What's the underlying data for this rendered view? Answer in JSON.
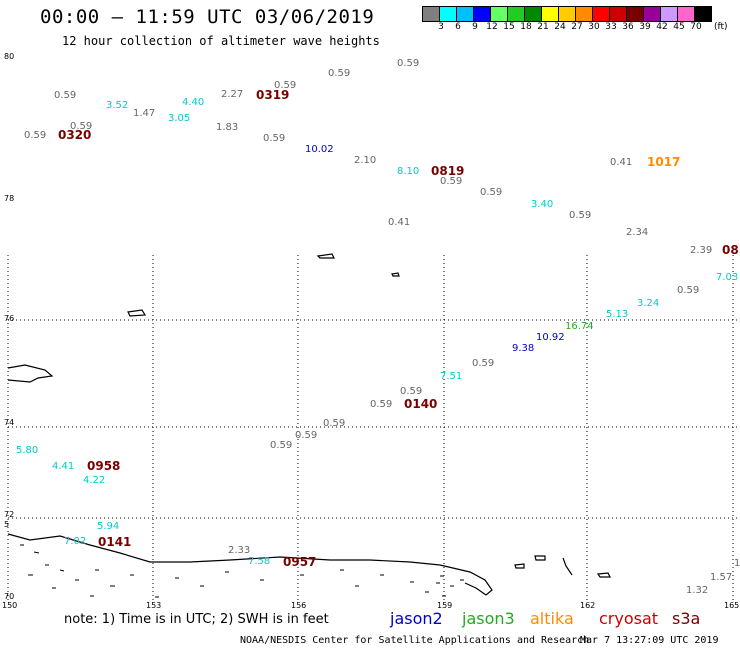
{
  "header": {
    "title": "00:00 – 11:59 UTC 03/06/2019",
    "subtitle": "12 hour collection of altimeter wave heights"
  },
  "legend": {
    "labels": [
      "3",
      "6",
      "9",
      "12",
      "15",
      "18",
      "21",
      "24",
      "27",
      "30",
      "33",
      "36",
      "39",
      "42",
      "45",
      "70"
    ],
    "unit": "(ft)",
    "colors": [
      "#7f7f7f",
      "#00ffff",
      "#00bfff",
      "#0000ff",
      "#66ff66",
      "#22cc22",
      "#008800",
      "#ffff00",
      "#ffcc00",
      "#ff8c00",
      "#ff0000",
      "#cc0000",
      "#7a0000",
      "#990099",
      "#cc99ff",
      "#ff66cc",
      "#000000"
    ]
  },
  "axes": {
    "lat_labels": [
      "80",
      "78",
      "76",
      "74",
      "72",
      "70"
    ],
    "lon_labels": [
      "150",
      "153",
      "156",
      "159",
      "162",
      "165"
    ],
    "left_edge_mark": "5"
  },
  "observations": [
    {
      "v": "0.59",
      "c": "#666666"
    },
    {
      "v": "0.59",
      "c": "#666666"
    },
    {
      "v": "0.59",
      "c": "#666666"
    },
    {
      "v": "3.52",
      "c": "#00cccc"
    },
    {
      "v": "1.47",
      "c": "#666666"
    },
    {
      "v": "4.40",
      "c": "#00cccc"
    },
    {
      "v": "3.05",
      "c": "#00cccc"
    },
    {
      "v": "2.27",
      "c": "#666666"
    },
    {
      "v": "0.59",
      "c": "#666666"
    },
    {
      "v": "0.59",
      "c": "#666666"
    },
    {
      "v": "0.59",
      "c": "#666666"
    },
    {
      "v": "1.83",
      "c": "#666666"
    },
    {
      "v": "0.59",
      "c": "#666666"
    },
    {
      "v": "0.59",
      "c": "#666666"
    },
    {
      "v": "10.02",
      "c": "#0000cc"
    },
    {
      "v": "2.10",
      "c": "#666666"
    },
    {
      "v": "8.10",
      "c": "#00cccc"
    },
    {
      "v": "0.59",
      "c": "#666666"
    },
    {
      "v": "0.41",
      "c": "#666666"
    },
    {
      "v": "0.59",
      "c": "#666666"
    },
    {
      "v": "3.40",
      "c": "#00cccc"
    },
    {
      "v": "0.59",
      "c": "#666666"
    },
    {
      "v": "0.41",
      "c": "#666666"
    },
    {
      "v": "2.34",
      "c": "#666666"
    },
    {
      "v": "2.39",
      "c": "#666666"
    },
    {
      "v": "7.03",
      "c": "#00cccc"
    },
    {
      "v": "0.59",
      "c": "#666666"
    },
    {
      "v": "3.24",
      "c": "#00cccc"
    },
    {
      "v": "5.13",
      "c": "#00cccc"
    },
    {
      "v": "16.74",
      "c": "#22aa22"
    },
    {
      "v": "10.92",
      "c": "#0000cc"
    },
    {
      "v": "9.38",
      "c": "#0000cc"
    },
    {
      "v": "0.59",
      "c": "#666666"
    },
    {
      "v": "7.51",
      "c": "#00cccc"
    },
    {
      "v": "0.59",
      "c": "#666666"
    },
    {
      "v": "0.59",
      "c": "#666666"
    },
    {
      "v": "0.59",
      "c": "#666666"
    },
    {
      "v": "0.59",
      "c": "#666666"
    },
    {
      "v": "0.59",
      "c": "#666666"
    },
    {
      "v": "5.80",
      "c": "#00cccc"
    },
    {
      "v": "4.41",
      "c": "#00cccc"
    },
    {
      "v": "4.22",
      "c": "#00cccc"
    },
    {
      "v": "5.94",
      "c": "#00cccc"
    },
    {
      "v": "7.02",
      "c": "#00cccc"
    },
    {
      "v": "2.33",
      "c": "#666666"
    },
    {
      "v": "7.58",
      "c": "#00cccc"
    },
    {
      "v": "1.57",
      "c": "#666666"
    },
    {
      "v": "1.32",
      "c": "#666666"
    },
    {
      "v": "1",
      "c": "#666666"
    }
  ],
  "time_labels": [
    {
      "v": "0320",
      "c": "#7a0000"
    },
    {
      "v": "0319",
      "c": "#7a0000"
    },
    {
      "v": "0819",
      "c": "#7a0000"
    },
    {
      "v": "1017",
      "c": "#ff8c00"
    },
    {
      "v": "08",
      "c": "#7a0000"
    },
    {
      "v": "0140",
      "c": "#7a0000"
    },
    {
      "v": "0958",
      "c": "#7a0000"
    },
    {
      "v": "0141",
      "c": "#7a0000"
    },
    {
      "v": "0957",
      "c": "#7a0000"
    }
  ],
  "note": "note:  1) Time is in UTC; 2) SWH is in feet",
  "satellites": [
    {
      "name": "jason2",
      "color": "#0000cc"
    },
    {
      "name": "jason3",
      "color": "#22aa22"
    },
    {
      "name": "altika",
      "color": "#ff8c00"
    },
    {
      "name": "cryosat",
      "color": "#cc0000"
    },
    {
      "name": "s3a",
      "color": "#7a0000"
    }
  ],
  "footer": {
    "credit": "NOAA/NESDIS Center for Satellite Applications and Research",
    "timestamp": "Mar  7 13:27:09 UTC 2019"
  }
}
